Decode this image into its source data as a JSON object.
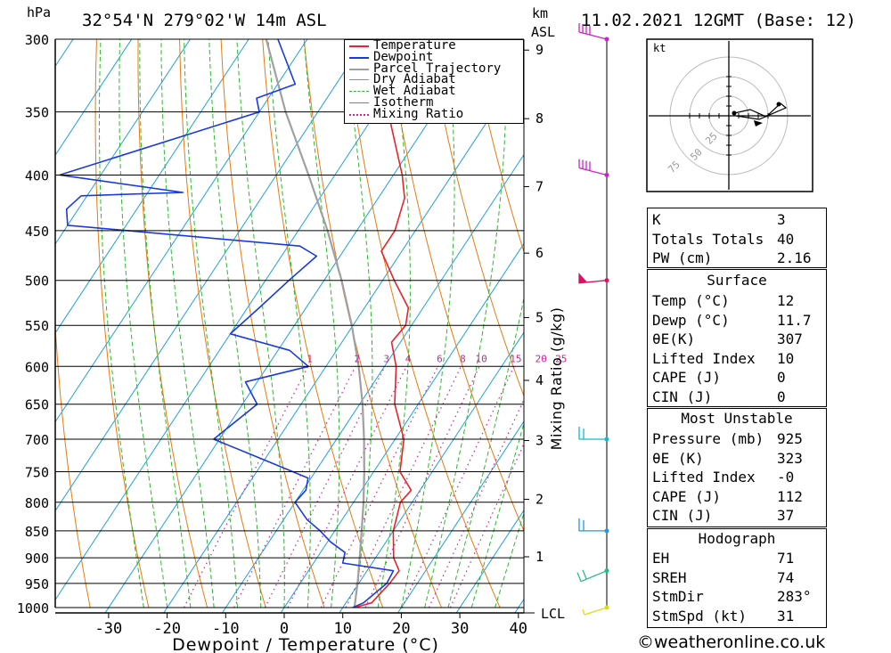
{
  "header": {
    "hpa": "hPa",
    "location": "32°54'N 279°02'W 14m ASL",
    "km": "km",
    "asl": "ASL",
    "datetime": "11.02.2021 12GMT (Base: 12)"
  },
  "chart_data": {
    "type": "skew-t",
    "xlabel": "Dewpoint / Temperature (°C)",
    "ylabel_right": "Mixing Ratio (g/kg)",
    "pressure_levels": [
      300,
      350,
      400,
      450,
      500,
      550,
      600,
      650,
      700,
      750,
      800,
      850,
      900,
      950,
      1000
    ],
    "temp_ticks": [
      -30,
      -20,
      -10,
      0,
      10,
      20,
      30,
      40
    ],
    "xlim": [
      -40,
      40
    ],
    "ylim_hpa": [
      1000,
      300
    ],
    "height_km_ticks": [
      1,
      2,
      3,
      4,
      5,
      6,
      7,
      8,
      9
    ],
    "mixing_ratio_labels": [
      "1",
      "2",
      "3",
      "4",
      "6",
      "8",
      "10",
      "15",
      "20",
      "25"
    ],
    "lcl_label": "LCL",
    "legend": [
      "Temperature",
      "Dewpoint",
      "Parcel Trajectory",
      "Dry Adiabat",
      "Wet Adiabat",
      "Isotherm",
      "Mixing Ratio"
    ],
    "colors": {
      "temperature": "#e8232a",
      "dewpoint": "#1a3adf",
      "parcel": "#a0a0a0",
      "dry_adiabat": "#e77b10",
      "wet_adiabat": "#2db82d",
      "isotherm": "#1fa0e0",
      "mixing_ratio": "#cc2299"
    },
    "temperature": [
      {
        "p": 1000,
        "t": 12.0
      },
      {
        "p": 990,
        "t": 14.4
      },
      {
        "p": 950,
        "t": 15.3
      },
      {
        "p": 925,
        "t": 15.5
      },
      {
        "p": 900,
        "t": 13.1
      },
      {
        "p": 850,
        "t": 10.0
      },
      {
        "p": 800,
        "t": 8.0
      },
      {
        "p": 780,
        "t": 8.5
      },
      {
        "p": 750,
        "t": 4.5
      },
      {
        "p": 700,
        "t": 1.5
      },
      {
        "p": 650,
        "t": -4.0
      },
      {
        "p": 600,
        "t": -8.0
      },
      {
        "p": 570,
        "t": -11.5
      },
      {
        "p": 550,
        "t": -11.0
      },
      {
        "p": 530,
        "t": -12.5
      },
      {
        "p": 500,
        "t": -18.0
      },
      {
        "p": 470,
        "t": -23.5
      },
      {
        "p": 450,
        "t": -23.5
      },
      {
        "p": 420,
        "t": -25.5
      },
      {
        "p": 400,
        "t": -28.5
      },
      {
        "p": 350,
        "t": -38.0
      },
      {
        "p": 300,
        "t": -47.0
      }
    ],
    "dewpoint": [
      {
        "p": 1000,
        "t": 11.7
      },
      {
        "p": 990,
        "t": 13.0
      },
      {
        "p": 950,
        "t": 14.8
      },
      {
        "p": 925,
        "t": 14.5
      },
      {
        "p": 910,
        "t": 5.0
      },
      {
        "p": 890,
        "t": 4.2
      },
      {
        "p": 870,
        "t": 0.5
      },
      {
        "p": 850,
        "t": -2.5
      },
      {
        "p": 830,
        "t": -6.0
      },
      {
        "p": 800,
        "t": -10.0
      },
      {
        "p": 780,
        "t": -9.5
      },
      {
        "p": 760,
        "t": -10.5
      },
      {
        "p": 730,
        "t": -20.5
      },
      {
        "p": 700,
        "t": -31.0
      },
      {
        "p": 650,
        "t": -27.5
      },
      {
        "p": 620,
        "t": -32.0
      },
      {
        "p": 600,
        "t": -23.0
      },
      {
        "p": 580,
        "t": -28.0
      },
      {
        "p": 560,
        "t": -40.0
      },
      {
        "p": 530,
        "t": -38.0
      },
      {
        "p": 500,
        "t": -36.0
      },
      {
        "p": 475,
        "t": -34.0
      },
      {
        "p": 465,
        "t": -38.0
      },
      {
        "p": 445,
        "t": -80.0
      },
      {
        "p": 430,
        "t": -82.0
      },
      {
        "p": 418,
        "t": -81.0
      },
      {
        "p": 415,
        "t": -64.0
      },
      {
        "p": 400,
        "t": -87.0
      },
      {
        "p": 350,
        "t": -60.0
      },
      {
        "p": 340,
        "t": -62.0
      },
      {
        "p": 330,
        "t": -57.0
      },
      {
        "p": 300,
        "t": -65.0
      }
    ],
    "parcel": [
      {
        "p": 1000,
        "t": 12.0
      },
      {
        "p": 950,
        "t": 9.8
      },
      {
        "p": 900,
        "t": 7.3
      },
      {
        "p": 850,
        "t": 4.6
      },
      {
        "p": 800,
        "t": 1.7
      },
      {
        "p": 750,
        "t": -1.6
      },
      {
        "p": 700,
        "t": -5.3
      },
      {
        "p": 650,
        "t": -9.5
      },
      {
        "p": 600,
        "t": -14.4
      },
      {
        "p": 550,
        "t": -20.2
      },
      {
        "p": 500,
        "t": -27.0
      },
      {
        "p": 450,
        "t": -35.0
      },
      {
        "p": 400,
        "t": -44.5
      },
      {
        "p": 350,
        "t": -55.5
      },
      {
        "p": 300,
        "t": -67.0
      }
    ],
    "winds": [
      {
        "p": 300,
        "color": "#cc22cc"
      },
      {
        "p": 400,
        "color": "#cc22cc"
      },
      {
        "p": 500,
        "color": "#dd1166"
      },
      {
        "p": 700,
        "color": "#11bbcc"
      },
      {
        "p": 850,
        "color": "#2299dd"
      },
      {
        "p": 925,
        "color": "#22bb88"
      },
      {
        "p": 1000,
        "color": "#dddd11"
      }
    ],
    "hodograph": {
      "unit": "kt",
      "rings": [
        "25",
        "50",
        "75"
      ]
    }
  },
  "indices": {
    "general": [
      {
        "label": "K",
        "value": "3"
      },
      {
        "label": "Totals Totals",
        "value": "40"
      },
      {
        "label": "PW (cm)",
        "value": "2.16"
      }
    ],
    "surface_title": "Surface",
    "surface": [
      {
        "label": "Temp (°C)",
        "value": "12"
      },
      {
        "label": "Dewp (°C)",
        "value": "11.7"
      },
      {
        "label": "θE(K)",
        "value": "307"
      },
      {
        "label": "Lifted Index",
        "value": "10"
      },
      {
        "label": "CAPE (J)",
        "value": "0"
      },
      {
        "label": "CIN (J)",
        "value": "0"
      }
    ],
    "mu_title": "Most Unstable",
    "mu": [
      {
        "label": "Pressure (mb)",
        "value": "925"
      },
      {
        "label": "θE (K)",
        "value": "323"
      },
      {
        "label": "Lifted Index",
        "value": "-0"
      },
      {
        "label": "CAPE (J)",
        "value": "112"
      },
      {
        "label": "CIN (J)",
        "value": "37"
      }
    ],
    "hodo_title": "Hodograph",
    "hodo": [
      {
        "label": "EH",
        "value": "71"
      },
      {
        "label": "SREH",
        "value": "74"
      },
      {
        "label": "StmDir",
        "value": "283°"
      },
      {
        "label": "StmSpd (kt)",
        "value": "31"
      }
    ]
  },
  "footer": {
    "copyright": "©weatheronline.co.uk"
  }
}
